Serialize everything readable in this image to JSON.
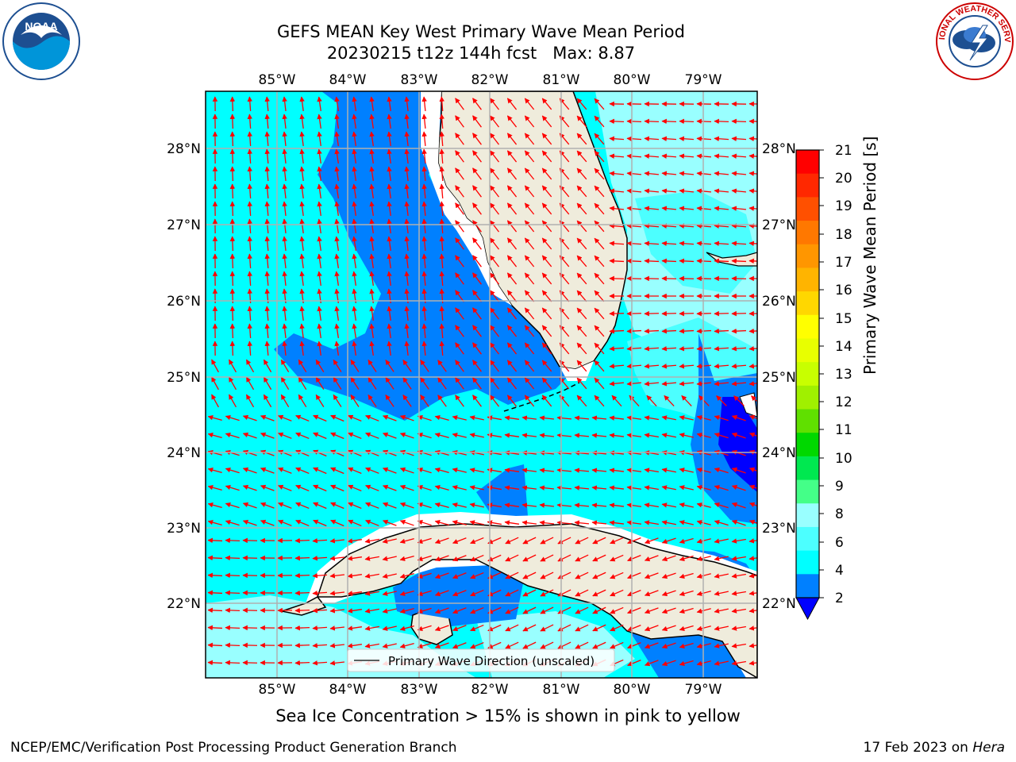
{
  "title_line1": "GEFS MEAN Key West Primary Wave Mean Period",
  "title_line2": "20230215 t12z 144h fcst   Max: 8.87",
  "map": {
    "lon_ticks": [
      "85°W",
      "84°W",
      "83°W",
      "82°W",
      "81°W",
      "80°W",
      "79°W"
    ],
    "lat_ticks": [
      "28°N",
      "27°N",
      "26°N",
      "25°N",
      "24°N",
      "23°N",
      "22°N"
    ],
    "legend_label": "Primary Wave Direction (unscaled)",
    "colors": {
      "ocean_light": "#00ffff",
      "ocean_pale": "#99ffff",
      "ocean_mid": "#4cffff",
      "ocean_blue": "#0080ff",
      "ocean_dark": "#0000ff",
      "land": "#efecdc",
      "arrow": "#ff0000",
      "grid": "#b0b0b0"
    }
  },
  "colorbar": {
    "label": "Primary Wave Mean Period [s]",
    "ticks": [
      "21",
      "20",
      "19",
      "18",
      "17",
      "16",
      "15",
      "14",
      "13",
      "12",
      "11",
      "10",
      "9",
      "8",
      "6",
      "4",
      "2"
    ],
    "band_colors": [
      "#ff0000",
      "#ff2800",
      "#ff5000",
      "#ff7800",
      "#ff9600",
      "#ffb400",
      "#ffd700",
      "#ffff00",
      "#e8ff00",
      "#c8ff00",
      "#a0f000",
      "#60e000",
      "#00d800",
      "#00e850",
      "#44ff88",
      "#99ffff",
      "#4cffff",
      "#00ffff",
      "#0080ff"
    ],
    "extend_color": "#0000ff"
  },
  "ice_note": "Sea Ice Concentration > 15% is shown in pink to yellow",
  "footer_left": "NCEP/EMC/Verification Post Processing Product Generation Branch",
  "footer_date": "17 Feb 2023 on ",
  "footer_host": "Hera",
  "logos": {
    "noaa_text": "NOAA",
    "nws_text": "NATIONAL WEATHER SERVICE"
  }
}
